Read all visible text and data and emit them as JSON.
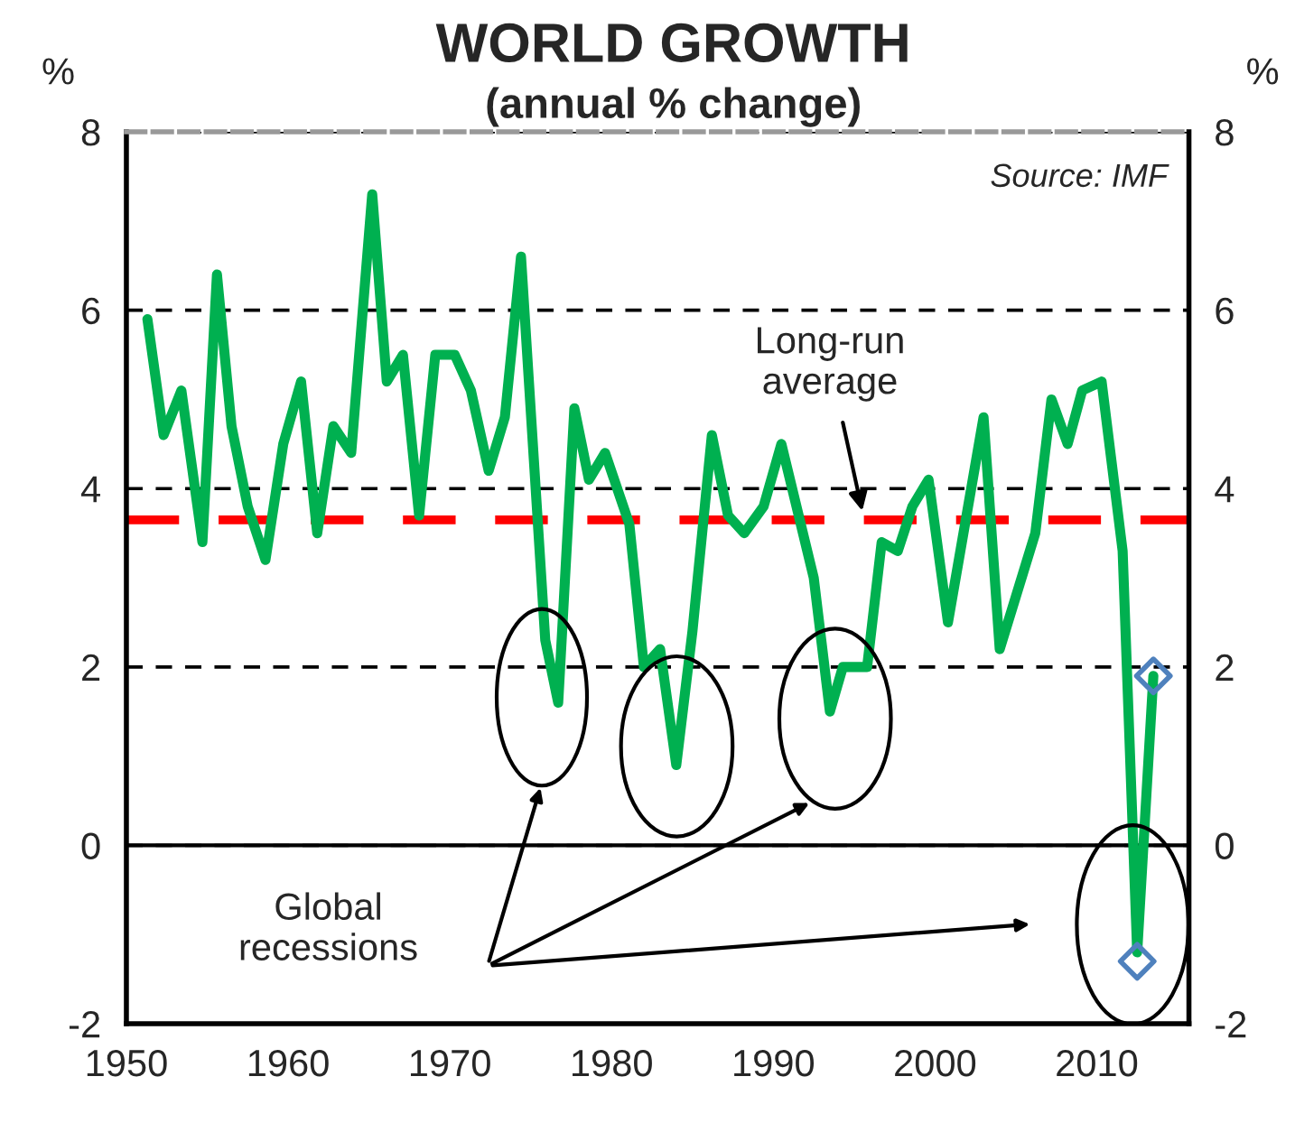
{
  "chart_data": {
    "type": "line",
    "title": "WORLD GROWTH",
    "subtitle": "(annual % change)",
    "ylabel": "%",
    "y2label": "%",
    "xlim": [
      1950,
      2015.7
    ],
    "xticks": [
      1950,
      1960,
      1970,
      1980,
      1990,
      2000,
      2010
    ],
    "ylim": [
      -2,
      8
    ],
    "yticks": [
      -2,
      0,
      2,
      4,
      6,
      8
    ],
    "y2lim": [
      -2,
      8
    ],
    "y2ticks": [
      -2,
      0,
      2,
      4,
      6,
      8
    ],
    "grid": "y",
    "legend": false,
    "series": [
      {
        "color": "#00b050",
        "marker": "none",
        "line_style": "solid",
        "x": [
          1951.3,
          1952.3,
          1953.4,
          1954.7,
          1955.6,
          1956.5,
          1957.5,
          1958.6,
          1959.7,
          1960.8,
          1961.8,
          1962.8,
          1963.9,
          1965.2,
          1966.1,
          1967.1,
          1968.1,
          1969.1,
          1970.3,
          1971.3,
          1972.4,
          1973.4,
          1974.4,
          1975.9,
          1976.7,
          1977.7,
          1978.6,
          1979.6,
          1981.1,
          1982.0,
          1983.0,
          1984.0,
          1985.0,
          1986.2,
          1987.2,
          1988.2,
          1989.4,
          1990.5,
          1992.5,
          1993.5,
          1994.3,
          1995.8,
          1996.7,
          1997.7,
          1998.6,
          1999.6,
          2000.8,
          2003.0,
          2004.0,
          2006.2,
          2007.2,
          2008.2,
          2009.1,
          2010.3,
          2011.6,
          2012.5,
          2013.5
        ],
        "values": [
          5.9,
          4.6,
          5.1,
          3.4,
          6.4,
          4.7,
          3.8,
          3.2,
          4.5,
          5.2,
          3.5,
          4.7,
          4.4,
          7.3,
          5.2,
          5.5,
          3.7,
          5.5,
          5.5,
          5.1,
          4.2,
          4.8,
          6.6,
          2.3,
          1.6,
          4.9,
          4.1,
          4.4,
          3.6,
          2.0,
          2.2,
          0.9,
          2.4,
          4.6,
          3.7,
          3.5,
          3.8,
          4.5,
          3.0,
          1.5,
          2.0,
          2.0,
          3.4,
          3.3,
          3.8,
          4.1,
          2.5,
          4.8,
          2.2,
          3.5,
          5.0,
          4.5,
          5.1,
          5.2,
          3.3,
          -1.2,
          1.9
        ]
      },
      {
        "type": "scatter",
        "color": "#4f81bd",
        "marker": "diamond",
        "x": [
          2012.5,
          2013.5
        ],
        "values": [
          -1.3,
          1.9
        ]
      }
    ],
    "ref_lines": [
      {
        "axis": "y",
        "value": 0,
        "label": null,
        "color": "#000000",
        "line_style": "solid"
      },
      {
        "axis": "y",
        "value": 3.65,
        "label": "Long-run\naverage",
        "color": "#ff0000",
        "line_style": "dashed"
      }
    ],
    "annotations": [
      "Source: IMF",
      "Global\nrecessions"
    ]
  }
}
